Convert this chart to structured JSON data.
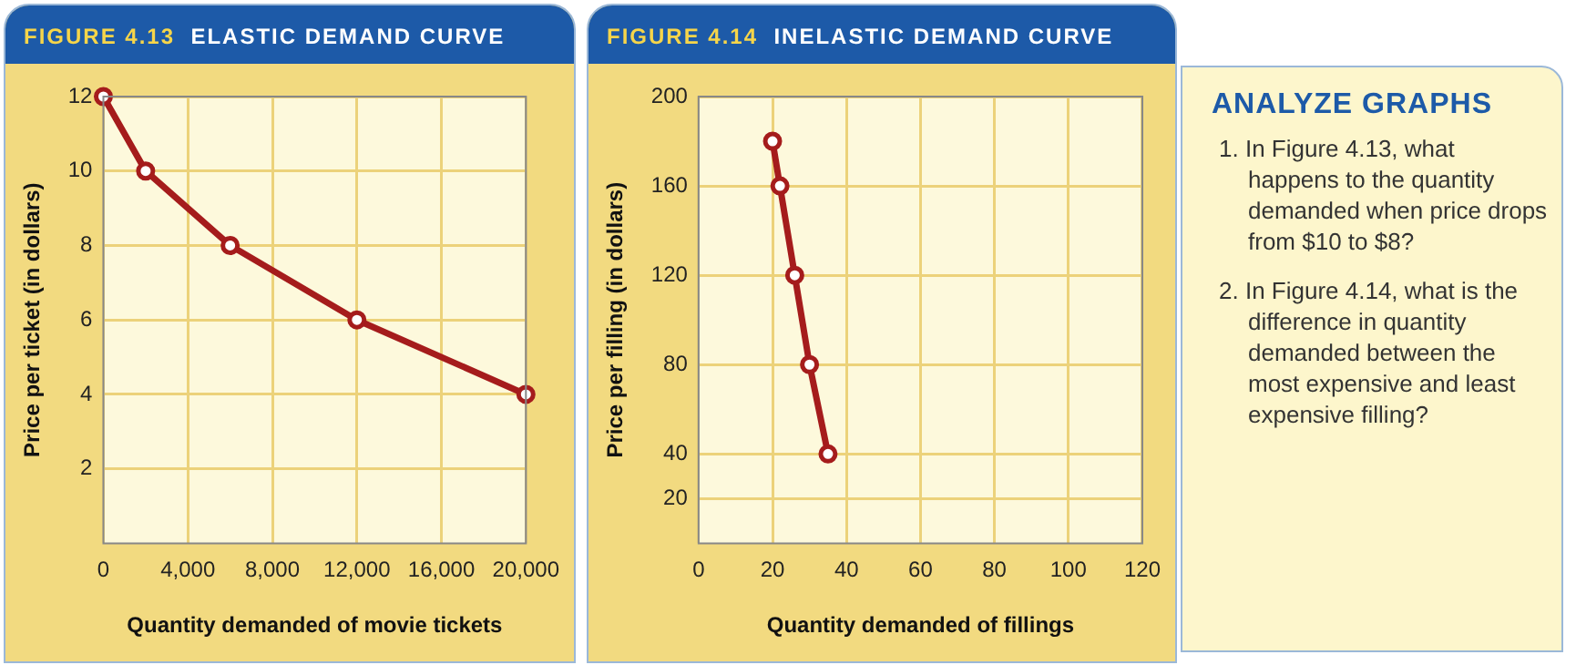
{
  "chart_data": [
    {
      "type": "line",
      "title": "FIGURE 4.13  ELASTIC DEMAND CURVE",
      "xlabel": "Quantity demanded of movie tickets",
      "ylabel": "Price per ticket (in dollars)",
      "x": [
        0,
        2000,
        6000,
        12000,
        20000
      ],
      "values": [
        12,
        10,
        8,
        6,
        4
      ],
      "color": "#a51c1c",
      "marker": "circle",
      "line_style": "solid",
      "grid": true,
      "xlim": [
        0,
        20000
      ],
      "xticks": [
        {
          "value": 0,
          "label": "0"
        },
        {
          "value": 4000,
          "label": "4,000"
        },
        {
          "value": 8000,
          "label": "8,000"
        },
        {
          "value": 12000,
          "label": "12,000"
        },
        {
          "value": 16000,
          "label": "16,000"
        },
        {
          "value": 20000,
          "label": "20,000"
        }
      ],
      "ylim": [
        0,
        12
      ],
      "yticks": [
        2,
        4,
        6,
        8,
        10,
        12
      ]
    },
    {
      "type": "line",
      "title": "FIGURE 4.14  INELASTIC DEMAND CURVE",
      "xlabel": "Quantity demanded of fillings",
      "ylabel": "Price per filling (in dollars)",
      "x": [
        20,
        22,
        26,
        30,
        35
      ],
      "values": [
        180,
        160,
        120,
        80,
        40
      ],
      "color": "#a51c1c",
      "marker": "circle",
      "line_style": "solid",
      "grid": true,
      "xlim": [
        0,
        120
      ],
      "xticks": [
        0,
        20,
        40,
        60,
        80,
        100,
        120
      ],
      "ylim": [
        0,
        200
      ],
      "yticks": [
        20,
        40,
        80,
        120,
        160,
        200
      ]
    },
    {
      "type": "other",
      "title": "ANALYZE GRAPHS",
      "annotations": [
        "1. In Figure 4.13, what happens to the quantity demanded when price drops from $10 to $8?",
        "2. In Figure 4.14, what is the difference in quantity demanded between the most expensive and least expensive filling?"
      ]
    }
  ]
}
